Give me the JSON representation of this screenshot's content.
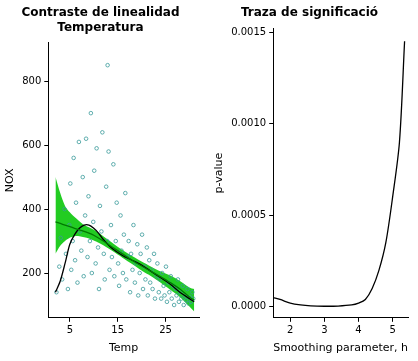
{
  "chart_data": [
    {
      "type": "scatter",
      "title": "Contraste de linealidad\nTemperatura",
      "x_label": "Temp",
      "y_label": "NOX",
      "xlim": [
        0.5,
        32
      ],
      "ylim": [
        60,
        920
      ],
      "xticks": [
        5,
        15,
        25
      ],
      "yticks": [
        200,
        400,
        600,
        800
      ],
      "grid": false,
      "series": [
        {
          "type": "scatter",
          "color": "#3a9a9a",
          "marker": "circle",
          "x": [
            2.2,
            2.8,
            3.1,
            3.4,
            3.9,
            4.2,
            4.6,
            4.9,
            5.1,
            5.3,
            5.6,
            5.8,
            6.1,
            6.3,
            6.6,
            6.9,
            7.1,
            7.4,
            7.7,
            7.9,
            8.2,
            8.4,
            8.7,
            8.9,
            9.2,
            9.4,
            9.6,
            9.9,
            10.1,
            10.4,
            10.6,
            10.9,
            11.1,
            11.3,
            11.6,
            11.8,
            12.1,
            12.3,
            12.6,
            12.8,
            13.1,
            13.3,
            13.6,
            13.8,
            14.1,
            14.3,
            14.6,
            14.8,
            15.1,
            15.3,
            15.6,
            15.8,
            16.1,
            16.3,
            16.6,
            16.8,
            17.1,
            17.3,
            17.6,
            17.8,
            18.1,
            18.3,
            18.6,
            18.8,
            19.1,
            19.3,
            19.6,
            19.8,
            20.1,
            20.3,
            20.6,
            20.8,
            21.1,
            21.3,
            21.6,
            21.8,
            22.1,
            22.3,
            22.6,
            22.8,
            23.1,
            23.3,
            23.6,
            23.8,
            24.1,
            24.3,
            24.6,
            24.8,
            25.1,
            25.3,
            25.6,
            25.8,
            26.1,
            26.3,
            26.6,
            26.8,
            27.1,
            27.3,
            27.6,
            27.8,
            28.1,
            28.3,
            28.6,
            28.8,
            29.1,
            29.3,
            29.6,
            29.8,
            30.1,
            30.3,
            30.6,
            30.8,
            12.9
          ],
          "values": [
            140,
            220,
            310,
            180,
            400,
            260,
            150,
            350,
            480,
            210,
            300,
            560,
            240,
            420,
            170,
            610,
            330,
            270,
            500,
            190,
            380,
            620,
            250,
            440,
            300,
            700,
            200,
            360,
            520,
            230,
            590,
            280,
            150,
            410,
            330,
            640,
            260,
            180,
            470,
            300,
            580,
            210,
            350,
            250,
            540,
            190,
            300,
            420,
            230,
            160,
            380,
            270,
            200,
            320,
            450,
            180,
            250,
            300,
            140,
            260,
            210,
            350,
            170,
            230,
            290,
            130,
            200,
            260,
            320,
            150,
            220,
            180,
            280,
            130,
            240,
            170,
            210,
            150,
            260,
            120,
            190,
            230,
            140,
            180,
            120,
            200,
            160,
            130,
            220,
            110,
            170,
            140,
            190,
            120,
            160,
            100,
            150,
            130,
            180,
            110,
            140,
            120,
            160,
            100,
            130,
            115,
            150,
            105,
            125,
            110,
            140,
            120,
            850
          ]
        },
        {
          "type": "band",
          "color": "#22cc22",
          "x": [
            2,
            3,
            4,
            5,
            6,
            7,
            8,
            9,
            10,
            12,
            14,
            16,
            18,
            20,
            22,
            24,
            26,
            28,
            30,
            31
          ],
          "lower": [
            260,
            285,
            300,
            310,
            315,
            315,
            312,
            308,
            302,
            287,
            268,
            248,
            228,
            208,
            190,
            170,
            148,
            125,
            95,
            80
          ],
          "upper": [
            500,
            450,
            410,
            390,
            375,
            362,
            350,
            343,
            335,
            315,
            293,
            272,
            253,
            236,
            220,
            205,
            192,
            175,
            155,
            150
          ]
        },
        {
          "type": "line",
          "color": "#007a00",
          "x": [
            2,
            3,
            4,
            5,
            6,
            7,
            8,
            9,
            10,
            12,
            14,
            16,
            18,
            20,
            22,
            24,
            26,
            28,
            30,
            31
          ],
          "values": [
            360,
            355,
            350,
            345,
            340,
            335,
            330,
            325,
            318,
            300,
            280,
            260,
            240,
            222,
            205,
            188,
            170,
            150,
            125,
            115
          ]
        },
        {
          "type": "line",
          "color": "#000000",
          "x": [
            2,
            3,
            4,
            5,
            6,
            7,
            8,
            9,
            10,
            11,
            12,
            14,
            16,
            18,
            20,
            22,
            24,
            26,
            28,
            30,
            31
          ],
          "values": [
            140,
            175,
            230,
            290,
            320,
            340,
            350,
            350,
            340,
            325,
            305,
            275,
            255,
            240,
            225,
            205,
            185,
            165,
            140,
            120,
            110
          ]
        }
      ]
    },
    {
      "type": "line",
      "title": "Traza de significació",
      "x_label": "Smoothing parameter, h",
      "y_label": "p-value",
      "xlim": [
        1.5,
        5.45
      ],
      "ylim": [
        -6e-05,
        0.00152
      ],
      "xticks": [
        2,
        3,
        4,
        5
      ],
      "yticks": [
        {
          "value": 0,
          "label": "0.0000"
        },
        {
          "value": 0.0005,
          "label": "0.0005"
        },
        {
          "value": 0.001,
          "label": "0.0010"
        },
        {
          "value": 0.0015,
          "label": "0.0015"
        }
      ],
      "grid": false,
      "series": [
        {
          "type": "line",
          "color": "#000000",
          "x": [
            1.5,
            1.7,
            2,
            2.3,
            2.6,
            3,
            3.4,
            3.8,
            4,
            4.2,
            4.4,
            4.6,
            4.8,
            5,
            5.2,
            5.35
          ],
          "values": [
            5e-05,
            4e-05,
            2e-05,
            1e-05,
            5e-06,
            3e-06,
            4e-06,
            1e-05,
            2e-05,
            4e-05,
            0.0001,
            0.0002,
            0.00035,
            0.0006,
            0.0009,
            0.00145
          ]
        }
      ]
    }
  ]
}
